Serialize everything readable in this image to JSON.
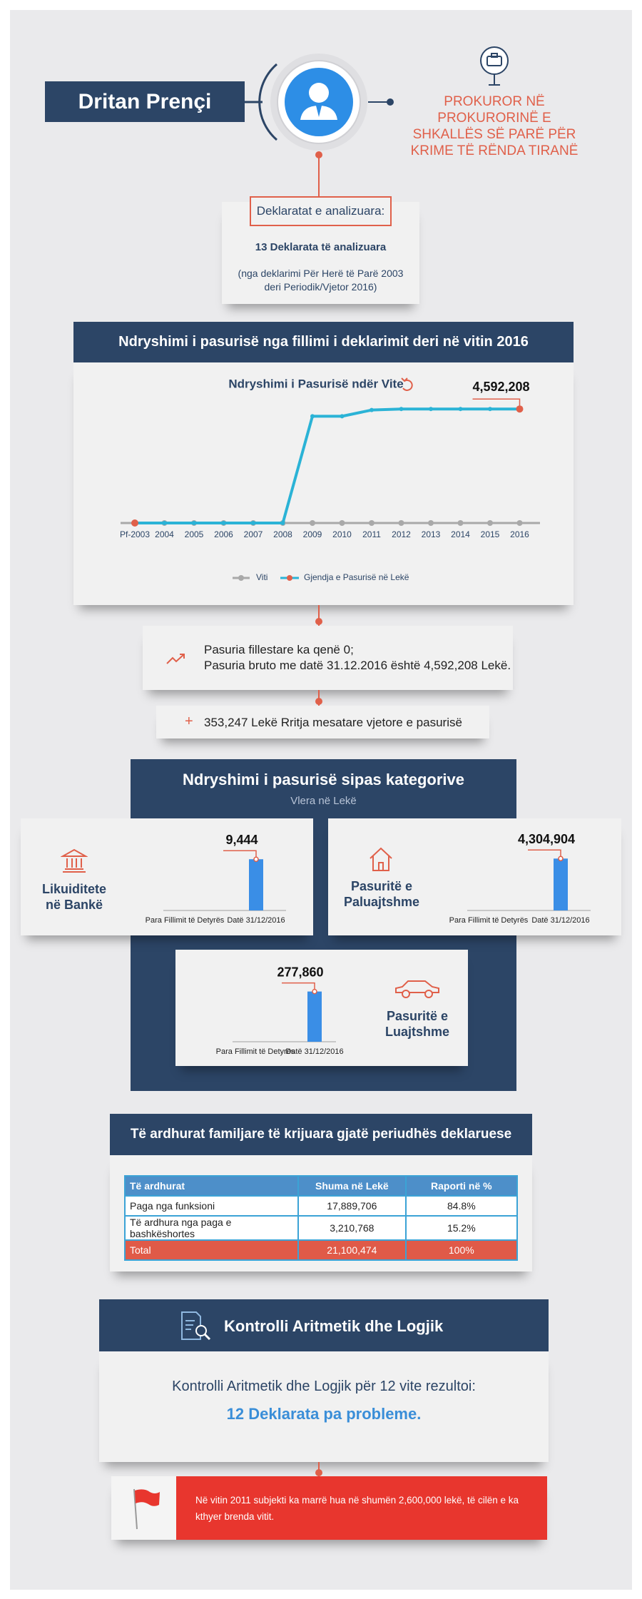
{
  "header": {
    "name": "Dritan Prençi",
    "position": "PROKUROR NË PROKURORINË E SHKALLËS SË PARË PËR KRIME TË RËNDA TIRANË"
  },
  "declarations": {
    "title": "Deklaratat e analizuara:",
    "count": "13 Deklarata të analizuara",
    "note_line1": "(nga deklarimi Për Herë të Parë 2003",
    "note_line2": "deri Periodik/Vjetor 2016)"
  },
  "chart_data": [
    {
      "type": "line",
      "section_title": "Ndryshimi i pasurisë nga fillimi i deklarimit deri në vitin 2016",
      "title": "Ndryshimi i Pasurisë ndër Vite",
      "categories": [
        "Pf-2003",
        "2004",
        "2005",
        "2006",
        "2007",
        "2008",
        "2009",
        "2010",
        "2011",
        "2012",
        "2013",
        "2014",
        "2015",
        "2016"
      ],
      "x_label": "Viti",
      "x_color": "#a9a9a9",
      "marker_color": "#e0604a",
      "series": [
        {
          "name": "Gjendja e Pasurisë në Lekë",
          "color": "#2bb3d6",
          "values": [
            0,
            0,
            0,
            0,
            0,
            0,
            4300000,
            4300000,
            4550000,
            4592208,
            4592208,
            4592208,
            4592208,
            4592208
          ],
          "value_labels": [
            null,
            null,
            null,
            null,
            null,
            null,
            null,
            null,
            null,
            null,
            null,
            null,
            null,
            "4,592,208"
          ]
        }
      ],
      "ylim": [
        0,
        5000000
      ]
    },
    {
      "type": "bar",
      "title": "Likuiditete në Bankë",
      "categories": [
        "Para Fillimit të Detyrës",
        "Datë 31/12/2016"
      ],
      "values": [
        0,
        9444
      ],
      "value_labels": [
        null,
        "9,444"
      ],
      "color": "#3a8ee6",
      "ylim": [
        0,
        10000
      ]
    },
    {
      "type": "bar",
      "title": "Pasuritë e Paluajtshme",
      "categories": [
        "Para Fillimit të Detyrës",
        "Datë 31/12/2016"
      ],
      "values": [
        0,
        4304904
      ],
      "value_labels": [
        null,
        "4,304,904"
      ],
      "color": "#3a8ee6",
      "ylim": [
        0,
        4500000
      ]
    },
    {
      "type": "bar",
      "title": "Pasuritë e Luajtshme",
      "categories": [
        "Para Fillimit të Detyrës",
        "Datë 31/12/2016"
      ],
      "values": [
        0,
        277860
      ],
      "value_labels": [
        null,
        "277,860"
      ],
      "color": "#3a8ee6",
      "ylim": [
        0,
        300000
      ]
    }
  ],
  "summary": {
    "line1": "Pasuria fillestare ka qenë 0;",
    "line2": "Pasuria bruto me datë 31.12.2016 është 4,592,208 Lekë.",
    "growth": "353,247 Lekë Rritja mesatare vjetore e pasurisë"
  },
  "categories_section": {
    "title": "Ndryshimi i pasurisë sipas kategorive",
    "subtitle": "Vlera në Lekë"
  },
  "income": {
    "title": "Të ardhurat familjare të krijuara gjatë periudhës deklaruese",
    "table": {
      "header": [
        "Të ardhurat",
        "Shuma në Lekë",
        "Raporti në %"
      ],
      "rows": [
        [
          "Paga nga funksioni",
          "17,889,706",
          "84.8%"
        ],
        [
          "Të ardhura nga paga e bashkëshortes",
          "3,210,768",
          "15.2%"
        ],
        [
          "Total",
          "21,100,474",
          "100%"
        ]
      ]
    }
  },
  "control": {
    "title": "Kontrolli Aritmetik dhe Logjik",
    "text": "Kontrolli Aritmetik dhe Logjik për 12 vite rezultoi:",
    "result": "12 Deklarata pa probleme."
  },
  "note": "Në vitin 2011 subjekti ka marrë hua në shumën 2,600,000 lekë, të cilën e ka kthyer brenda vitit."
}
